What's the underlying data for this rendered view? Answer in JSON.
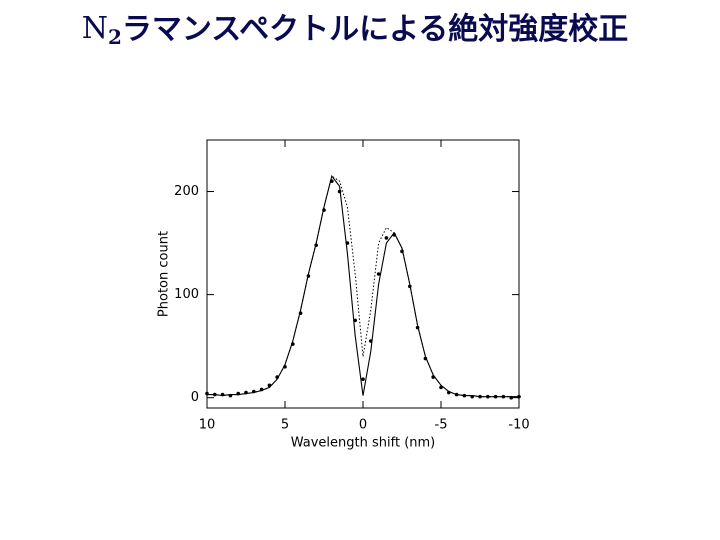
{
  "chart_data": {
    "type": "line",
    "title_parts": [
      {
        "text": "N"
      },
      {
        "text": "2",
        "subscript": true
      },
      {
        "text": "ラマンスペクトルによる絶対強度校正"
      }
    ],
    "title_color": "#0a0a50",
    "xlabel": "Wavelength shift (nm)",
    "ylabel": "Photon count",
    "x": [
      10,
      9.5,
      9,
      8.5,
      8,
      7.5,
      7,
      6.5,
      6,
      5.5,
      5,
      4.5,
      4,
      3.5,
      3,
      2.5,
      2,
      1.5,
      1,
      0.5,
      0,
      -0.5,
      -1,
      -1.5,
      -2,
      -2.5,
      -3,
      -3.5,
      -4,
      -4.5,
      -5,
      -5.5,
      -6,
      -6.5,
      -7,
      -7.5,
      -8,
      -8.5,
      -9,
      -9.5,
      -10
    ],
    "series": [
      {
        "style": "solid",
        "color": "#000000",
        "values": [
          3,
          3,
          2,
          3,
          3,
          4,
          5,
          7,
          10,
          18,
          32,
          55,
          85,
          120,
          150,
          185,
          215,
          205,
          140,
          60,
          2,
          45,
          110,
          150,
          160,
          145,
          110,
          70,
          40,
          22,
          12,
          6,
          3,
          2,
          2,
          1,
          1,
          1,
          1,
          1,
          1
        ]
      },
      {
        "style": "dotted",
        "color": "#000000",
        "values": [
          3,
          3,
          2,
          3,
          3,
          4,
          5,
          7,
          10,
          18,
          32,
          55,
          85,
          120,
          150,
          185,
          215,
          210,
          185,
          120,
          40,
          85,
          150,
          165,
          160,
          145,
          110,
          70,
          40,
          22,
          12,
          6,
          3,
          2,
          2,
          1,
          1,
          1,
          1,
          1,
          1
        ]
      },
      {
        "style": "dots",
        "color": "#000000",
        "values": [
          4,
          3,
          3,
          2,
          4,
          5,
          6,
          8,
          12,
          20,
          30,
          52,
          82,
          118,
          148,
          182,
          210,
          200,
          150,
          75,
          18,
          55,
          120,
          155,
          158,
          142,
          108,
          68,
          38,
          20,
          10,
          5,
          3,
          2,
          1,
          1,
          1,
          1,
          1,
          0,
          1
        ]
      }
    ],
    "xlim": [
      10,
      -10
    ],
    "xticks": [
      10,
      5,
      0,
      -5,
      -10
    ],
    "ylim": [
      -10,
      250
    ],
    "yticks": [
      0,
      100,
      200
    ]
  }
}
